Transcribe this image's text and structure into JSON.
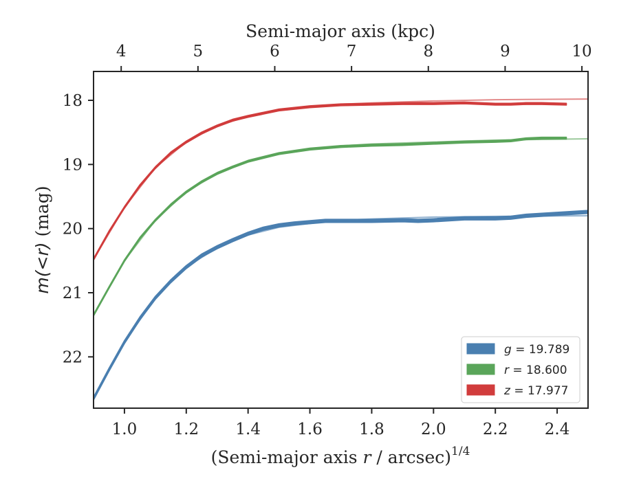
{
  "chart_data": {
    "type": "line",
    "top_axis": {
      "label": "Semi-major axis (kpc)",
      "ticks": [
        4,
        5,
        6,
        7,
        8,
        9,
        10
      ],
      "tick_labels": [
        "4",
        "5",
        "6",
        "7",
        "8",
        "9",
        "10"
      ],
      "xlim": [
        3.64,
        10.08
      ]
    },
    "xlabel": "(Semi-major axis r / arcsec)^1/4",
    "xlabel_parts": {
      "prefix": "(Semi-major axis ",
      "var": "r",
      "suffix": " / arcsec)",
      "power": "1/4"
    },
    "ylabel": "m(<r) (mag)",
    "ylabel_parts": {
      "math": "m(<r)",
      "unit": " (mag)"
    },
    "xlim": [
      0.9,
      2.5
    ],
    "ylim": [
      22.8,
      17.55
    ],
    "y_inverted": true,
    "x_ticks": [
      1.0,
      1.2,
      1.4,
      1.6,
      1.8,
      2.0,
      2.2,
      2.4
    ],
    "x_tick_labels": [
      "1.0",
      "1.2",
      "1.4",
      "1.6",
      "1.8",
      "2.0",
      "2.2",
      "2.4"
    ],
    "y_ticks": [
      18,
      19,
      20,
      21,
      22
    ],
    "y_tick_labels": [
      "18",
      "19",
      "20",
      "21",
      "22"
    ],
    "grid": false,
    "legend_position": "bottom-right",
    "series": [
      {
        "name": "g = 19.789",
        "band": "g",
        "total": "19.789",
        "color": "#4a7fb0",
        "band_width_mag": 0.05,
        "x": [
          0.9,
          0.95,
          1.0,
          1.05,
          1.1,
          1.15,
          1.2,
          1.25,
          1.3,
          1.35,
          1.4,
          1.45,
          1.5,
          1.55,
          1.6,
          1.65,
          1.7,
          1.8,
          1.9,
          1.95,
          2.0,
          2.1,
          2.2,
          2.25,
          2.3,
          2.4,
          2.5
        ],
        "y": [
          22.65,
          22.2,
          21.77,
          21.4,
          21.08,
          20.82,
          20.6,
          20.42,
          20.29,
          20.18,
          20.08,
          20.0,
          19.95,
          19.92,
          19.9,
          19.88,
          19.88,
          19.88,
          19.87,
          19.88,
          19.87,
          19.84,
          19.84,
          19.83,
          19.8,
          19.77,
          19.74
        ],
        "model": {
          "x": [
            0.9,
            1.0,
            1.1,
            1.2,
            1.3,
            1.4,
            1.5,
            1.6,
            1.7,
            1.8,
            2.0,
            2.2,
            2.5
          ],
          "y": [
            22.65,
            21.77,
            21.08,
            20.6,
            20.3,
            20.1,
            19.98,
            19.92,
            19.87,
            19.85,
            19.82,
            19.81,
            19.8
          ]
        }
      },
      {
        "name": "r = 18.600",
        "band": "r",
        "total": "18.600",
        "color": "#5aa55a",
        "band_width_mag": 0.03,
        "x": [
          0.9,
          0.95,
          1.0,
          1.05,
          1.1,
          1.15,
          1.2,
          1.25,
          1.3,
          1.35,
          1.4,
          1.5,
          1.6,
          1.7,
          1.8,
          1.9,
          2.0,
          2.1,
          2.2,
          2.25,
          2.3,
          2.35,
          2.43
        ],
        "y": [
          21.35,
          20.92,
          20.5,
          20.15,
          19.87,
          19.63,
          19.43,
          19.27,
          19.14,
          19.04,
          18.95,
          18.83,
          18.76,
          18.72,
          18.7,
          18.69,
          18.67,
          18.65,
          18.64,
          18.63,
          18.6,
          18.59,
          18.59
        ],
        "model": {
          "x": [
            0.9,
            1.0,
            1.1,
            1.2,
            1.3,
            1.4,
            1.5,
            1.6,
            1.7,
            1.8,
            2.0,
            2.2,
            2.5
          ],
          "y": [
            21.35,
            20.5,
            19.87,
            19.43,
            19.14,
            18.95,
            18.84,
            18.76,
            18.71,
            18.68,
            18.65,
            18.62,
            18.6
          ]
        }
      },
      {
        "name": "z = 17.977",
        "band": "z",
        "total": "17.977",
        "color": "#d13c3c",
        "band_width_mag": 0.03,
        "x": [
          0.9,
          0.95,
          1.0,
          1.05,
          1.1,
          1.15,
          1.2,
          1.25,
          1.3,
          1.35,
          1.4,
          1.5,
          1.6,
          1.7,
          1.8,
          1.9,
          2.0,
          2.1,
          2.2,
          2.25,
          2.3,
          2.35,
          2.43
        ],
        "y": [
          20.48,
          20.05,
          19.67,
          19.33,
          19.05,
          18.82,
          18.65,
          18.51,
          18.4,
          18.31,
          18.25,
          18.15,
          18.1,
          18.07,
          18.06,
          18.05,
          18.05,
          18.04,
          18.06,
          18.06,
          18.05,
          18.05,
          18.06
        ],
        "model": {
          "x": [
            0.9,
            1.0,
            1.1,
            1.2,
            1.3,
            1.4,
            1.5,
            1.6,
            1.7,
            1.8,
            2.0,
            2.2,
            2.5
          ],
          "y": [
            20.48,
            19.67,
            19.05,
            18.65,
            18.4,
            18.25,
            18.15,
            18.1,
            18.06,
            18.04,
            18.01,
            17.99,
            17.98
          ]
        }
      }
    ]
  }
}
